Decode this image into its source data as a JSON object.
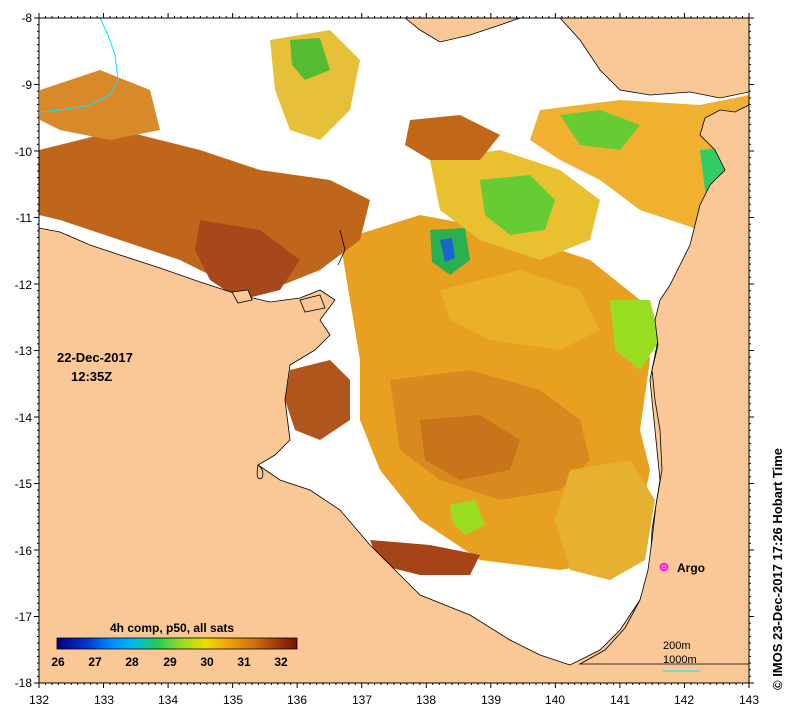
{
  "map": {
    "title_date": "22-Dec-2017",
    "title_time": "12:35Z",
    "credit": "© IMOS 23-Dec-2017 17:26 Hobart Time",
    "product": "4h comp, p50, all sats",
    "lat_ticks": [
      "-8",
      "-9",
      "-10",
      "-11",
      "-12",
      "-13",
      "-14",
      "-15",
      "-16",
      "-17",
      "-18"
    ],
    "lon_ticks": [
      "132",
      "133",
      "134",
      "135",
      "136",
      "137",
      "138",
      "139",
      "140",
      "141",
      "142",
      "143"
    ],
    "colorbar_ticks": [
      "26",
      "27",
      "28",
      "29",
      "30",
      "31",
      "32"
    ],
    "colorbar_colors": [
      "#00007f",
      "#0033cc",
      "#0088ff",
      "#00bbee",
      "#22cc55",
      "#99dd22",
      "#eedd00",
      "#f0a000",
      "#d07010",
      "#a03808",
      "#7a1000"
    ],
    "argo_label": "Argo",
    "argo_color": "#ff00ff",
    "scale_200": "200m",
    "scale_1000": "1000m",
    "land_color": "#fac896",
    "river_color": "#00e5ff"
  }
}
